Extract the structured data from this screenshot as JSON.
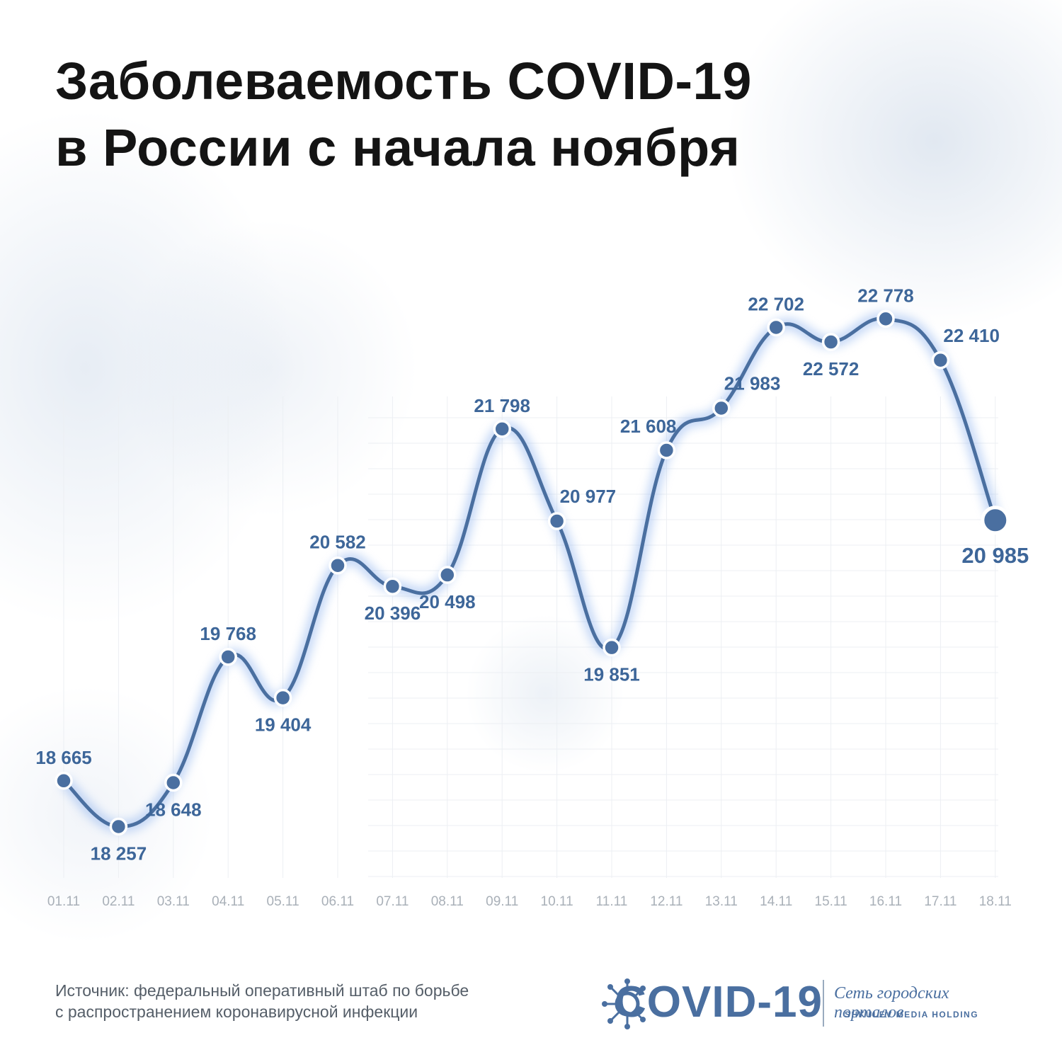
{
  "title": {
    "line1": "Заболеваемость COVID-19",
    "line2": "в России с начала ноября"
  },
  "chart_data": {
    "type": "line",
    "title": "Заболеваемость COVID-19 в России с начала ноября",
    "categories": [
      "01.11",
      "02.11",
      "03.11",
      "04.11",
      "05.11",
      "06.11",
      "07.11",
      "08.11",
      "09.11",
      "10.11",
      "11.11",
      "12.11",
      "13.11",
      "14.11",
      "15.11",
      "16.11",
      "17.11",
      "18.11"
    ],
    "series": [
      {
        "values": [
          18665,
          18257,
          18648,
          19768,
          19404,
          20582,
          20396,
          20498,
          21798,
          20977,
          19851,
          21608,
          21983,
          22702,
          22572,
          22778,
          22410,
          20985
        ],
        "labels": [
          "18 665",
          "18 257",
          "18 648",
          "19 768",
          "19 404",
          "20 582",
          "20 396",
          "20 498",
          "21 798",
          "20 977",
          "19 851",
          "21 608",
          "21 983",
          "22 702",
          "22 572",
          "22 778",
          "22 410",
          "20 985"
        ],
        "label_position": [
          "above",
          "below",
          "below",
          "above",
          "below",
          "above",
          "below",
          "below",
          "above",
          "right",
          "below",
          "left",
          "right",
          "above",
          "below",
          "above",
          "right",
          "below"
        ]
      }
    ],
    "ylim": [
      17800,
      23600
    ],
    "grid": true,
    "line_color": "#4a6fa0",
    "point_color": "#4a6fa0",
    "label_color": "#3d6699",
    "tick_color": "#a9b0b8"
  },
  "footer": {
    "source_line1": "Источник: федеральный оперативный штаб по борьбе",
    "source_line2": "с распространением коронавирусной инфекции"
  },
  "brand": {
    "logo_text": "COVID-19",
    "network": "Сеть городских порталов",
    "holding": "SHKULEV MEDIA HOLDING",
    "logo_icon": "virus-icon"
  }
}
